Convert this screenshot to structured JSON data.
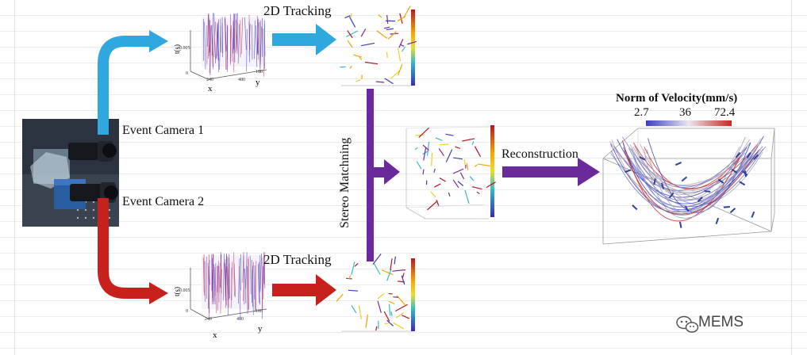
{
  "labels": {
    "tracking_top": "2D Tracking",
    "tracking_bottom": "2D Tracking",
    "camera1": "Event Camera 1",
    "camera2": "Event Camera 2",
    "stereo": "Stereo Matchning",
    "reconstruction": "Reconstruction"
  },
  "plot_top": {
    "t_label": "t(s)",
    "x_label": "x",
    "y_label": "y",
    "t_tick": "0.005",
    "origin": "0",
    "x_tick1": "240",
    "x_tick2": "480",
    "y_tick": "180"
  },
  "plot_bottom": {
    "t_label": "t(s)",
    "x_label": "x",
    "y_label": "y",
    "t_tick": "0.005",
    "origin": "0",
    "x_tick1": "240",
    "x_tick2": "480",
    "y_tick": "180"
  },
  "velocity": {
    "title": "Norm of Velocity(mm/s)",
    "min": "2.7",
    "mid": "36",
    "max": "72.4"
  },
  "watermark": {
    "text": "MEMS",
    "icon": "wechat-icon"
  },
  "colors": {
    "blue_arrow": "#2fa8df",
    "red_arrow": "#c8201c",
    "purple_arrow": "#6a2a9c"
  }
}
